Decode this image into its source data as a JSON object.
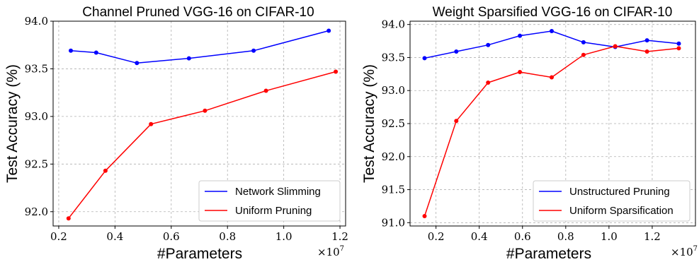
{
  "chart_data": [
    {
      "type": "line",
      "title": "Channel Pruned VGG-16 on CIFAR-10",
      "xlabel": "#Parameters",
      "ylabel": "Test Accuracy (%)",
      "x_multiplier": "×10",
      "x_multiplier_exp": "7",
      "xlim": [
        0.18,
        1.22
      ],
      "ylim": [
        91.85,
        94.0
      ],
      "xticks": [
        0.2,
        0.4,
        0.6,
        0.8,
        1.0,
        1.2
      ],
      "xtick_labels": [
        "0.2",
        "0.4",
        "0.6",
        "0.8",
        "1.0",
        "1.2"
      ],
      "yticks": [
        92.0,
        92.5,
        93.0,
        93.5,
        94.0
      ],
      "ytick_labels": [
        "92.0",
        "92.5",
        "93.0",
        "93.5",
        "94.0"
      ],
      "grid": true,
      "legend_position": "bottom-right",
      "series": [
        {
          "name": "Network Slimming",
          "color": "#0000ff",
          "x": [
            0.243,
            0.333,
            0.478,
            0.663,
            0.893,
            1.16
          ],
          "y": [
            93.69,
            93.67,
            93.56,
            93.61,
            93.69,
            93.9
          ]
        },
        {
          "name": "Uniform Pruning",
          "color": "#ff0000",
          "x": [
            0.235,
            0.366,
            0.528,
            0.72,
            0.937,
            1.185
          ],
          "y": [
            91.93,
            92.43,
            92.92,
            93.06,
            93.27,
            93.47
          ]
        }
      ]
    },
    {
      "type": "line",
      "title": "Weight Sparsified VGG-16 on CIFAR-10",
      "xlabel": "#Parameters",
      "ylabel": "Test Accuracy (%)",
      "x_multiplier": "×10",
      "x_multiplier_exp": "7",
      "xlim": [
        0.08,
        1.4
      ],
      "ylim": [
        90.95,
        94.05
      ],
      "xticks": [
        0.2,
        0.4,
        0.6,
        0.8,
        1.0,
        1.2
      ],
      "xtick_labels": [
        "0.2",
        "0.4",
        "0.6",
        "0.8",
        "1.0",
        "1.2"
      ],
      "yticks": [
        91.0,
        91.5,
        92.0,
        92.5,
        93.0,
        93.5,
        94.0
      ],
      "ytick_labels": [
        "91.0",
        "91.5",
        "92.0",
        "92.5",
        "93.0",
        "93.5",
        "94.0"
      ],
      "grid": true,
      "legend_position": "bottom-right",
      "series": [
        {
          "name": "Unstructured Pruning",
          "color": "#0000ff",
          "x": [
            0.147,
            0.294,
            0.441,
            0.588,
            0.735,
            0.882,
            1.029,
            1.176,
            1.323
          ],
          "y": [
            93.49,
            93.59,
            93.69,
            93.83,
            93.9,
            93.73,
            93.66,
            93.76,
            93.71
          ]
        },
        {
          "name": "Uniform Sparsification",
          "color": "#ff0000",
          "x": [
            0.147,
            0.294,
            0.441,
            0.588,
            0.735,
            0.882,
            1.029,
            1.176,
            1.323
          ],
          "y": [
            91.1,
            92.54,
            93.12,
            93.28,
            93.2,
            93.54,
            93.67,
            93.59,
            93.64
          ]
        }
      ]
    }
  ]
}
